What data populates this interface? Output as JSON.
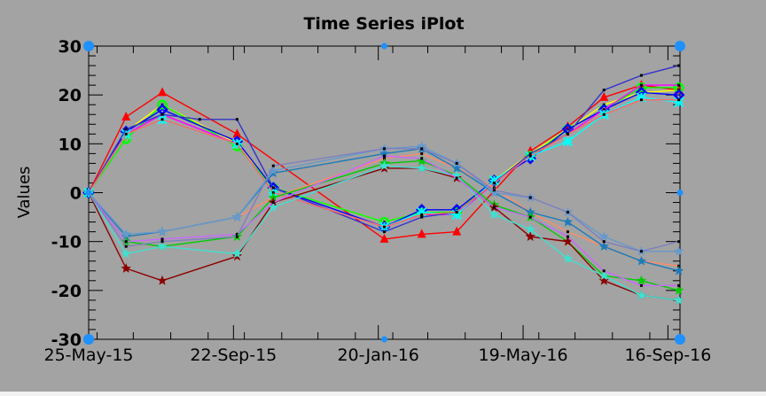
{
  "chart_data": {
    "type": "line",
    "title": "Time Series iPlot",
    "xlabel": "",
    "ylabel": "Values",
    "ylim": [
      -30,
      30
    ],
    "xlim": [
      "2015-05-25",
      "2016-09-26"
    ],
    "yticks": [
      -30,
      -20,
      -10,
      0,
      10,
      20,
      30
    ],
    "xticks": [
      "25-May-15",
      "22-Sep-15",
      "20-Jan-16",
      "19-May-16",
      "16-Sep-16"
    ],
    "grid": false,
    "legend": "none",
    "x": [
      "2015-05-25",
      "2015-06-25",
      "2015-07-25",
      "2015-08-25",
      "2015-09-25",
      "2015-10-25",
      "2015-11-25",
      "2015-12-25",
      "2016-01-25",
      "2016-02-25",
      "2016-03-25",
      "2016-04-25",
      "2016-05-25",
      "2016-06-25",
      "2016-07-25",
      "2016-08-25",
      "2016-09-25"
    ],
    "series": [
      {
        "color": "#ff0000",
        "marker": "triangle",
        "values": [
          0,
          15.5,
          20.5,
          null,
          12,
          null,
          null,
          null,
          -9.5,
          -8.5,
          -8,
          null,
          8.5,
          13.5,
          19.5,
          22,
          21
        ]
      },
      {
        "color": "#ffff00",
        "marker": "none",
        "values": [
          0,
          12.5,
          18,
          null,
          10,
          1,
          null,
          null,
          -6,
          -4,
          -4,
          2.5,
          8,
          13,
          18,
          20.5,
          21
        ]
      },
      {
        "color": "#00ff00",
        "marker": "circle",
        "values": [
          0,
          11,
          18,
          null,
          9.5,
          1,
          null,
          null,
          -6,
          -4,
          -4,
          2.5,
          7.5,
          13,
          17,
          21.5,
          21.5
        ]
      },
      {
        "color": "#0000ff",
        "marker": "diamond",
        "values": [
          0,
          12.5,
          17,
          null,
          10.5,
          1,
          null,
          null,
          -7,
          -3.5,
          -3.5,
          2.5,
          7,
          13,
          17,
          20.5,
          20
        ]
      },
      {
        "color": "#ff00ff",
        "marker": "none",
        "values": [
          0,
          12,
          16,
          null,
          10,
          0,
          null,
          null,
          -7,
          -4.5,
          -4.5,
          2,
          7.5,
          12,
          17,
          22,
          22
        ]
      },
      {
        "color": "#00ffff",
        "marker": "cross",
        "values": [
          0,
          12,
          15,
          null,
          10,
          0,
          null,
          null,
          -7,
          -4,
          -4.5,
          2.5,
          7.5,
          10.5,
          16,
          19.5,
          18.5
        ]
      },
      {
        "color": "#3333cc",
        "marker": "none",
        "values": [
          0,
          13,
          16,
          15,
          15,
          1,
          null,
          null,
          -8,
          -5,
          -4,
          2,
          8,
          12,
          21,
          24,
          26
        ]
      },
      {
        "color": "#ff6666",
        "marker": "none",
        "values": [
          0,
          12,
          15,
          null,
          10,
          0,
          null,
          null,
          -7,
          -4.5,
          -4,
          2,
          7.5,
          12,
          16,
          19,
          19
        ]
      },
      {
        "color": "#ff8c66",
        "marker": "none",
        "values": [
          0,
          -9,
          -8,
          null,
          -5,
          -1,
          null,
          null,
          7,
          8,
          5,
          1,
          -4,
          -8,
          -11,
          -14,
          -15
        ]
      },
      {
        "color": "#1e7bb8",
        "marker": "star",
        "values": [
          0,
          -9,
          -8,
          null,
          -5,
          4,
          null,
          null,
          8,
          9,
          5,
          0,
          -4,
          -6,
          -11,
          -14,
          -16
        ]
      },
      {
        "color": "#6699cc",
        "marker": "star",
        "values": [
          0,
          -8.5,
          -8,
          null,
          -5,
          4.5,
          null,
          null,
          9,
          9.5,
          6,
          0,
          -1,
          -4,
          -9,
          -12,
          -12
        ]
      },
      {
        "color": "#00cc00",
        "marker": "star",
        "values": [
          0,
          -10,
          -11,
          null,
          -9,
          -1,
          null,
          null,
          6,
          6.5,
          3.5,
          -2.5,
          -5,
          -10,
          -17,
          -18,
          -20
        ]
      },
      {
        "color": "#8b0000",
        "marker": "star",
        "values": [
          0,
          -15.5,
          -18,
          null,
          -13,
          -2,
          null,
          null,
          5,
          5,
          3,
          -3,
          -9,
          -10,
          -18,
          -21,
          -22
        ]
      },
      {
        "color": "#40e0d0",
        "marker": "star",
        "values": [
          0,
          -12.5,
          -11,
          null,
          -12.5,
          -3,
          null,
          null,
          5.5,
          5,
          3.5,
          -4.5,
          -7.5,
          -13.5,
          -17,
          -21,
          -22
        ]
      },
      {
        "color": "#cc66ff",
        "marker": "none",
        "values": [
          0,
          -10,
          -9.5,
          null,
          -8.5,
          -2,
          null,
          null,
          7.5,
          7,
          3,
          -3,
          -5,
          -9,
          -16,
          -19,
          -19
        ]
      },
      {
        "color": "#7f7fbf",
        "marker": "none",
        "values": [
          0,
          -11,
          -10,
          null,
          -9,
          5.5,
          null,
          null,
          9,
          9,
          6,
          0.5,
          -1,
          -4,
          -10,
          -12,
          -10
        ]
      }
    ]
  }
}
